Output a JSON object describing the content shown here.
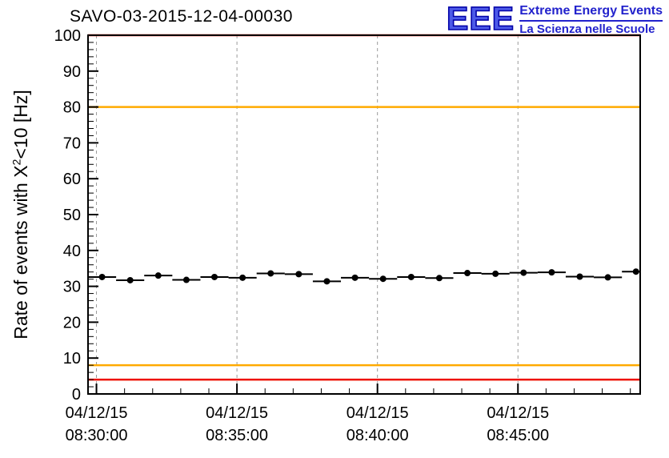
{
  "header": {
    "title": "SAVO-03-2015-12-04-00030",
    "logo": {
      "acronym": "EEE",
      "subtitle_line1": "Extreme Energy Events",
      "subtitle_line2": "La Scienza nelle Scuole",
      "color": "#2222cc"
    }
  },
  "y_axis_label": {
    "prefix": "Rate of events with X",
    "sup": "2",
    "suffix": "<10 [Hz]"
  },
  "chart_data": {
    "type": "scatter",
    "title": "SAVO-03-2015-12-04-00030",
    "ylabel": "Rate of events with X^2<10 [Hz]",
    "xlabel": "",
    "ylim": [
      0,
      100
    ],
    "y_major_ticks": [
      0,
      10,
      20,
      30,
      40,
      50,
      60,
      70,
      80,
      90,
      100
    ],
    "y_minor_step": 2,
    "x_unit": "minutes after 08:00 on 04/12/15",
    "xlim": [
      29.7,
      49.35
    ],
    "x_minor_step": 1,
    "x_major_ticks": [
      {
        "t": 30,
        "date": "04/12/15",
        "time": "08:30:00"
      },
      {
        "t": 35,
        "date": "04/12/15",
        "time": "08:35:00"
      },
      {
        "t": 40,
        "date": "04/12/15",
        "time": "08:40:00"
      },
      {
        "t": 45,
        "date": "04/12/15",
        "time": "08:45:00"
      }
    ],
    "grid": {
      "vertical_dashed": true,
      "horizontal": false,
      "color": "#9a9a9a"
    },
    "legend": "none",
    "threshold_lines": [
      {
        "value": 100,
        "color": "#ee1100",
        "meaning": "upper-red-limit"
      },
      {
        "value": 80,
        "color": "#ffaa00",
        "meaning": "upper-orange-limit"
      },
      {
        "value": 8,
        "color": "#ffaa00",
        "meaning": "lower-orange-limit"
      },
      {
        "value": 4,
        "color": "#ee1100",
        "meaning": "lower-red-limit"
      }
    ],
    "series": [
      {
        "name": "event-rate",
        "marker": "filled-circle",
        "color": "#000000",
        "bin_halfwidth": 0.5,
        "points": [
          [
            30.2,
            32.6
          ],
          [
            31.2,
            31.7
          ],
          [
            32.2,
            33.0
          ],
          [
            33.2,
            31.8
          ],
          [
            34.2,
            32.6
          ],
          [
            35.2,
            32.4
          ],
          [
            36.2,
            33.6
          ],
          [
            37.2,
            33.4
          ],
          [
            38.2,
            31.4
          ],
          [
            39.2,
            32.4
          ],
          [
            40.2,
            32.1
          ],
          [
            41.2,
            32.6
          ],
          [
            42.2,
            32.3
          ],
          [
            43.2,
            33.7
          ],
          [
            44.2,
            33.5
          ],
          [
            45.2,
            33.8
          ],
          [
            46.2,
            33.9
          ],
          [
            47.2,
            32.7
          ],
          [
            48.2,
            32.5
          ],
          [
            49.2,
            34.1
          ]
        ]
      }
    ]
  }
}
